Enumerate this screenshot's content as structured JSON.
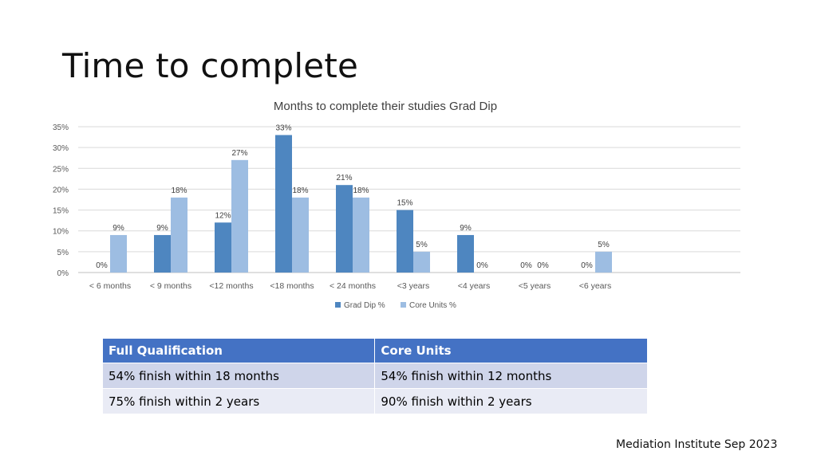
{
  "slide": {
    "title": "Time to complete",
    "footer": "Mediation Institute Sep 2023"
  },
  "chart_data": {
    "type": "bar",
    "title": "Months to complete their studies Grad Dip",
    "categories": [
      "< 6 months",
      "< 9 months",
      "<12 months",
      "<18 months",
      "< 24 months",
      "<3 years",
      "<4 years",
      "<5 years",
      "<6 years"
    ],
    "series": [
      {
        "name": "Grad Dip %",
        "color": "#4e86c0",
        "values": [
          0,
          9,
          12,
          33,
          21,
          15,
          9,
          0,
          0
        ],
        "labels": [
          "0%",
          "9%",
          "12%",
          "33%",
          "21%",
          "15%",
          "9%",
          "0%",
          "0%"
        ]
      },
      {
        "name": "Core Units %",
        "color": "#9dbde2",
        "values": [
          9,
          18,
          27,
          18,
          18,
          5,
          0,
          0,
          5
        ],
        "labels": [
          "9%",
          "18%",
          "27%",
          "18%",
          "18%",
          "5%",
          "0%",
          "0%",
          "5%"
        ]
      }
    ],
    "ylim": [
      0,
      35
    ],
    "yticks": [
      "0%",
      "5%",
      "10%",
      "15%",
      "20%",
      "25%",
      "30%",
      "35%"
    ],
    "grid": true,
    "legend": "bottom"
  },
  "table": {
    "headers": [
      "Full Qualification",
      "Core Units"
    ],
    "rows": [
      [
        "54% finish within 18 months",
        "54% finish within 12 months"
      ],
      [
        "75% finish within 2 years",
        "90% finish within 2 years"
      ]
    ]
  }
}
